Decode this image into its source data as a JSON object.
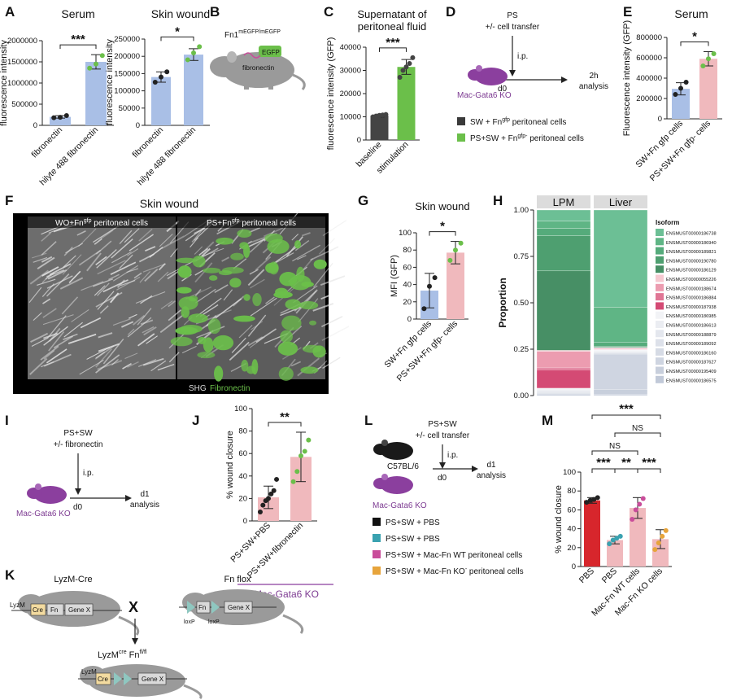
{
  "figure": {
    "panel_letters": [
      "A",
      "B",
      "C",
      "D",
      "E",
      "F",
      "G",
      "H",
      "I",
      "J",
      "K",
      "L",
      "M"
    ],
    "colors": {
      "blue": "#a9bfe6",
      "green": "#6bbf4a",
      "pink": "#f0b9bd",
      "red": "#d7262c",
      "purple": "#8b3f9e",
      "orange": "#e7a43b",
      "teal": "#3aa2b0",
      "magenta": "#c94d9a",
      "dark": "#3a3a3a",
      "violet_text": "#7d3b92"
    },
    "panelB": {
      "mouse_label": "Fn1",
      "mouse_sup": "mEGFP/mEGFP",
      "egfp": "EGFP",
      "fibronectin": "fibronectin"
    },
    "panelD": {
      "line1": "PS",
      "line2": "+/- cell transfer",
      "ip": "i.p.",
      "d0": "d0",
      "out1": "2h",
      "out2": "analysis",
      "mouse": "Mac-Gata6 KO",
      "legend": [
        "SW + Fn",
        "PS+SW + Fn"
      ],
      "legend_sup": [
        "gfp",
        "gfp-"
      ],
      "legend_tail": [
        " peritoneal cells",
        " peritoneal cells"
      ]
    },
    "panelF": {
      "title": "Skin wound",
      "left": "WO+Fn",
      "left_sup": "gfp",
      "left_tail": " peritoneal cells",
      "right": "PS+Fn",
      "right_sup": "gfp",
      "right_tail": " peritoneal cells",
      "shg": "SHG",
      "fn": "Fibronectin"
    },
    "panelI": {
      "line1": "PS+SW",
      "line2": "+/- fibronectin",
      "ip": "i.p.",
      "d0": "d0",
      "out1": "d1",
      "out2": "analysis",
      "mouse": "Mac-Gata6 KO"
    },
    "panelJ": {
      "group": "Mac-Gata6 KO"
    },
    "panelK": {
      "left": "LyzM-Cre",
      "right": "Fn flox",
      "x": "X",
      "lyzm": "LyzM",
      "cre": "Cre",
      "fn": "Fn",
      "genex": "Gene X",
      "loxp": "loxP",
      "result": "LyzM",
      "result_sup1": "cre",
      "result_mid": " Fn",
      "result_sup2": "fl/fl"
    },
    "panelL": {
      "line1": "PS+SW",
      "line2": "+/- cell transfer",
      "ip": "i.p.",
      "d0": "d0",
      "out1": "d1",
      "out2": "analysis",
      "mouse1": "C57BL/6",
      "mouse2": "Mac-Gata6 KO",
      "legend": [
        "PS+SW + PBS",
        "PS+SW + PBS",
        "PS+SW + Mac-Fn WT peritoneal cells",
        "PS+SW + Mac-Fn KO"
      ],
      "legend_tail4": " peritoneal cells",
      "legend_sup4": "-"
    }
  },
  "chart_data": [
    {
      "id": "A1",
      "type": "bar",
      "title": "Serum",
      "categories": [
        "fibronectin",
        "hilyte 488 fibronectin"
      ],
      "values": [
        200000,
        1500000
      ],
      "points": [
        [
          180000,
          190000,
          230000
        ],
        [
          1350000,
          1450000,
          1650000
        ]
      ],
      "errors": [
        30000,
        170000
      ],
      "ylabel": "fluorescence intensity",
      "ylim": [
        0,
        2000000
      ],
      "yticks": [
        0,
        500000,
        1000000,
        1500000,
        2000000
      ],
      "colors": [
        "#a9bfe6",
        "#a9bfe6"
      ],
      "dot_colors": [
        "#222",
        "#6bbf4a"
      ],
      "significance": "***"
    },
    {
      "id": "A2",
      "type": "bar",
      "title": "Skin wound",
      "categories": [
        "fibronectin",
        "hilyte 488 fibronectin"
      ],
      "values": [
        140000,
        205000
      ],
      "points": [
        [
          125000,
          140000,
          155000
        ],
        [
          190000,
          210000,
          228000
        ]
      ],
      "errors": [
        15000,
        17000
      ],
      "ylabel": "fluorescence intensity",
      "ylim": [
        0,
        250000
      ],
      "yticks": [
        0,
        50000,
        100000,
        150000,
        200000,
        250000
      ],
      "colors": [
        "#a9bfe6",
        "#a9bfe6"
      ],
      "dot_colors": [
        "#222",
        "#6bbf4a"
      ],
      "significance": "*"
    },
    {
      "id": "C",
      "type": "bar",
      "title": "Supernatant of peritoneal fluid",
      "title_lines": [
        "Supernatant of",
        "peritoneal fluid"
      ],
      "categories": [
        "baseline",
        "stimulation"
      ],
      "values": [
        10500,
        31500
      ],
      "points": [
        [
          10000,
          10300,
          10600,
          10800,
          11000
        ],
        [
          27000,
          30000,
          31500,
          33000,
          35500
        ]
      ],
      "errors": [
        600,
        3200
      ],
      "ylabel": "fluorescence intensity  (GFP)",
      "ylim": [
        0,
        40000
      ],
      "yticks": [
        0,
        10000,
        20000,
        30000,
        40000
      ],
      "colors": [
        "#444444",
        "#6bbf4a"
      ],
      "dot_colors": [
        "#444",
        "#444"
      ],
      "significance": "***"
    },
    {
      "id": "E",
      "type": "bar",
      "title": "Serum",
      "categories": [
        "SW+Fn gfp cells",
        "PS+SW+Fn gfp- cells"
      ],
      "values": [
        295000,
        590000
      ],
      "points": [
        [
          240000,
          300000,
          360000
        ],
        [
          520000,
          590000,
          640000
        ]
      ],
      "errors": [
        60000,
        70000
      ],
      "ylabel": "Fluorescence intensity  (GFP)",
      "ylim": [
        0,
        800000
      ],
      "yticks": [
        0,
        200000,
        400000,
        600000,
        800000
      ],
      "colors": [
        "#a9bfe6",
        "#f0b9bd"
      ],
      "dot_colors": [
        "#222",
        "#6bbf4a"
      ],
      "significance": "*"
    },
    {
      "id": "G",
      "type": "bar",
      "title": "Skin wound",
      "categories": [
        "SW+Fn gfp cells",
        "PS+SW+Fn gfp- cells"
      ],
      "values": [
        33,
        77
      ],
      "points": [
        [
          12,
          38,
          48
        ],
        [
          68,
          80,
          88
        ]
      ],
      "errors": [
        20,
        13
      ],
      "ylabel": "MFI (GFP)",
      "ylim": [
        0,
        100
      ],
      "yticks": [
        0,
        20,
        40,
        60,
        80,
        100
      ],
      "colors": [
        "#a9bfe6",
        "#f0b9bd"
      ],
      "dot_colors": [
        "#222",
        "#6bbf4a"
      ],
      "significance": "*"
    },
    {
      "id": "H",
      "type": "bar",
      "stacked": true,
      "categories": [
        "LPM",
        "Liver"
      ],
      "ylabel": "Proportion",
      "ylim": [
        0,
        1
      ],
      "yticks": [
        0,
        0.25,
        0.5,
        0.75,
        1
      ],
      "legend_title": "Isoform",
      "series": [
        {
          "name": "ENSMUST00000186738",
          "color": "#6cbf95",
          "values": [
            0.06,
            0.55
          ]
        },
        {
          "name": "ENSMUST00000186940",
          "color": "#5fb585",
          "values": [
            0.04,
            0.2
          ]
        },
        {
          "name": "ENSMUST00000189821",
          "color": "#55ab7b",
          "values": [
            0.04,
            0.02
          ]
        },
        {
          "name": "ENSMUST00000190780",
          "color": "#4e9f70",
          "values": [
            0.19,
            0.005
          ]
        },
        {
          "name": "ENSMUST00000186129",
          "color": "#478f65",
          "values": [
            0.43,
            0.004
          ]
        },
        {
          "name": "ENSMUST00000055226",
          "color": "#f6c9d1",
          "values": [
            0.005,
            0.003
          ]
        },
        {
          "name": "ENSMUST00000188674",
          "color": "#ec9cb0",
          "values": [
            0.09,
            0.004
          ]
        },
        {
          "name": "ENSMUST00000186884",
          "color": "#e07695",
          "values": [
            0.01,
            0.002
          ]
        },
        {
          "name": "ENSMUST00000187938",
          "color": "#d44a74",
          "values": [
            0.1,
            0.002
          ]
        },
        {
          "name": "ENSMUST00000186985",
          "color": "#f2f3f6",
          "values": [
            0.005,
            0.005
          ]
        },
        {
          "name": "ENSMUST00000186613",
          "color": "#ebedf2",
          "values": [
            0.005,
            0.005
          ]
        },
        {
          "name": "ENSMUST00000188879",
          "color": "#e4e7ee",
          "values": [
            0.005,
            0.005
          ]
        },
        {
          "name": "ENSMUST00000189092",
          "color": "#dde1ea",
          "values": [
            0.005,
            0.005
          ]
        },
        {
          "name": "ENSMUST00000186160",
          "color": "#d6dbe5",
          "values": [
            0.005,
            0.005
          ]
        },
        {
          "name": "ENSMUST00000187627",
          "color": "#cfd5e1",
          "values": [
            0.005,
            0.2
          ]
        },
        {
          "name": "ENSMUST00000195409",
          "color": "#c8cfdc",
          "values": [
            0.005,
            0.03
          ]
        },
        {
          "name": "ENSMUST00000186575",
          "color": "#c1c9d8",
          "values": [
            0.005,
            0.005
          ]
        }
      ]
    },
    {
      "id": "J",
      "type": "bar",
      "categories": [
        "PS+SW+PBS",
        "PS+SW+fibronectin"
      ],
      "values": [
        21,
        57
      ],
      "points": [
        [
          8,
          14,
          18,
          20,
          24,
          27,
          37
        ],
        [
          35,
          44,
          58,
          62,
          72
        ]
      ],
      "errors": [
        10,
        22
      ],
      "ylabel": "% wound closure",
      "ylim": [
        0,
        100
      ],
      "yticks": [
        0,
        20,
        40,
        60,
        80,
        100
      ],
      "colors": [
        "#f0b9bd",
        "#f0b9bd"
      ],
      "dot_colors": [
        "#222",
        "#6bbf4a"
      ],
      "significance": "**"
    },
    {
      "id": "M",
      "type": "bar",
      "categories": [
        "PBS",
        "PBS",
        "Mac-Fn WT cells",
        "Mac-Fn KO cells"
      ],
      "values": [
        70,
        28,
        62,
        29
      ],
      "points": [
        [
          68,
          70,
          71,
          73
        ],
        [
          24,
          28,
          30,
          32
        ],
        [
          50,
          60,
          66,
          72
        ],
        [
          18,
          25,
          32,
          38
        ]
      ],
      "errors": [
        3,
        4,
        11,
        10
      ],
      "ylabel": "% wound closure",
      "ylim": [
        0,
        100
      ],
      "yticks": [
        0,
        20,
        40,
        60,
        80,
        100
      ],
      "colors": [
        "#d7262c",
        "#f0b9bd",
        "#f0b9bd",
        "#f0b9bd"
      ],
      "dot_colors": [
        "#222",
        "#3aa2b0",
        "#c94d9a",
        "#e7a43b"
      ],
      "comparisons": [
        {
          "from": 0,
          "to": 1,
          "label": "***"
        },
        {
          "from": 1,
          "to": 2,
          "label": "**"
        },
        {
          "from": 2,
          "to": 3,
          "label": "***"
        },
        {
          "from": 0,
          "to": 2,
          "label": "NS"
        },
        {
          "from": 1,
          "to": 3,
          "label": "NS"
        },
        {
          "from": 0,
          "to": 3,
          "label": "***"
        }
      ]
    }
  ]
}
